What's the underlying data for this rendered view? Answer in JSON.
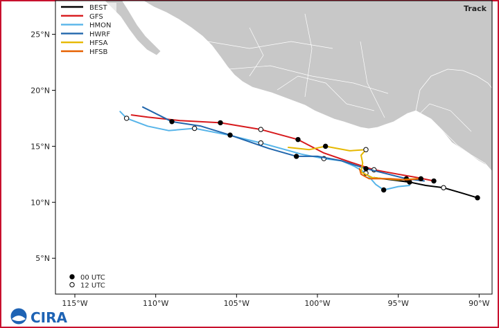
{
  "panel_title": "Track",
  "legend": {
    "models": [
      {
        "name": "BEST",
        "color": "#000000"
      },
      {
        "name": "GFS",
        "color": "#d7191c"
      },
      {
        "name": "HMON",
        "color": "#56b4e9"
      },
      {
        "name": "HWRF",
        "color": "#2166ac"
      },
      {
        "name": "HFSA",
        "color": "#e6b800"
      },
      {
        "name": "HFSB",
        "color": "#e66101"
      }
    ],
    "markers": [
      {
        "label": "00 UTC",
        "style": "filled"
      },
      {
        "label": "12 UTC",
        "style": "open"
      }
    ]
  },
  "logo": {
    "text": "CIRA"
  },
  "axes": {
    "lon_ticks": [
      "115°W",
      "110°W",
      "105°W",
      "100°W",
      "95°W",
      "90°W"
    ],
    "lat_ticks": [
      "25°N",
      "20°N",
      "15°N",
      "10°N",
      "5°N"
    ],
    "lon_values": [
      -115,
      -110,
      -105,
      -100,
      -95,
      -90
    ],
    "lat_values": [
      25,
      20,
      15,
      10,
      5
    ],
    "lon_range": [
      -116.2,
      -89.2
    ],
    "lat_range": [
      1.8,
      28.0
    ]
  },
  "colors": {
    "land": "#c8c8c8",
    "coast": "#ffffff",
    "frame": "#c8102e"
  },
  "tracks": [
    {
      "model": "BEST",
      "color": "#000000",
      "points": [
        [
          -90.1,
          10.4
        ],
        [
          -91.0,
          10.8
        ],
        [
          -92.2,
          11.3
        ],
        [
          -93.3,
          11.5
        ],
        [
          -94.3,
          11.8
        ],
        [
          -95.4,
          12.0
        ],
        [
          -96.5,
          12.2
        ]
      ],
      "markers": [
        [
          -90.1,
          10.4,
          "filled"
        ],
        [
          -92.2,
          11.3,
          "open"
        ],
        [
          -94.3,
          11.8,
          "filled"
        ]
      ]
    },
    {
      "model": "GFS",
      "color": "#d7191c",
      "points": [
        [
          -92.8,
          11.9
        ],
        [
          -93.8,
          12.2
        ],
        [
          -95.0,
          12.5
        ],
        [
          -96.5,
          12.9
        ],
        [
          -98.0,
          13.6
        ],
        [
          -99.6,
          14.4
        ],
        [
          -101.2,
          15.6
        ],
        [
          -103.5,
          16.5
        ],
        [
          -106.0,
          17.1
        ],
        [
          -108.5,
          17.3
        ],
        [
          -110.5,
          17.6
        ],
        [
          -111.5,
          17.8
        ]
      ],
      "markers": [
        [
          -92.8,
          11.9,
          "filled"
        ],
        [
          -96.5,
          12.9,
          "open"
        ],
        [
          -101.2,
          15.6,
          "filled"
        ],
        [
          -103.5,
          16.5,
          "open"
        ],
        [
          -106.0,
          17.1,
          "filled"
        ]
      ]
    },
    {
      "model": "HMON",
      "color": "#56b4e9",
      "points": [
        [
          -94.3,
          11.5
        ],
        [
          -95.0,
          11.4
        ],
        [
          -95.9,
          11.1
        ],
        [
          -96.4,
          11.6
        ],
        [
          -97.0,
          12.6
        ],
        [
          -97.7,
          13.2
        ],
        [
          -98.5,
          13.7
        ],
        [
          -99.6,
          13.9
        ],
        [
          -101.0,
          14.3
        ],
        [
          -103.5,
          15.3
        ],
        [
          -105.5,
          16.0
        ],
        [
          -107.6,
          16.6
        ],
        [
          -109.2,
          16.4
        ],
        [
          -110.5,
          16.8
        ],
        [
          -111.8,
          17.5
        ],
        [
          -112.2,
          18.1
        ]
      ],
      "markers": [
        [
          -95.9,
          11.1,
          "filled"
        ],
        [
          -97.0,
          12.6,
          "open"
        ],
        [
          -99.6,
          13.9,
          "open"
        ],
        [
          -103.5,
          15.3,
          "open"
        ],
        [
          -107.6,
          16.6,
          "open"
        ],
        [
          -111.8,
          17.5,
          "open"
        ]
      ]
    },
    {
      "model": "HWRF",
      "color": "#2166ac",
      "points": [
        [
          -93.4,
          11.9
        ],
        [
          -94.5,
          12.1
        ],
        [
          -95.6,
          12.5
        ],
        [
          -97.0,
          13.0
        ],
        [
          -98.5,
          13.7
        ],
        [
          -100.0,
          14.1
        ],
        [
          -101.3,
          14.1
        ],
        [
          -103.0,
          14.8
        ],
        [
          -105.4,
          16.0
        ],
        [
          -107.2,
          16.8
        ],
        [
          -109.0,
          17.2
        ],
        [
          -110.8,
          18.5
        ]
      ],
      "markers": [
        [
          -94.5,
          12.1,
          "filled"
        ],
        [
          -97.0,
          13.0,
          "filled"
        ],
        [
          -101.3,
          14.1,
          "filled"
        ],
        [
          -105.4,
          16.0,
          "filled"
        ],
        [
          -109.0,
          17.2,
          "filled"
        ]
      ]
    },
    {
      "model": "HFSA",
      "color": "#e6b800",
      "points": [
        [
          -93.8,
          12.1
        ],
        [
          -95.0,
          12.0
        ],
        [
          -96.6,
          12.2
        ],
        [
          -97.3,
          12.7
        ],
        [
          -97.2,
          13.5
        ],
        [
          -97.3,
          14.2
        ],
        [
          -97.0,
          14.7
        ],
        [
          -98.0,
          14.6
        ],
        [
          -99.5,
          15.0
        ],
        [
          -100.5,
          14.7
        ],
        [
          -101.8,
          14.9
        ]
      ],
      "markers": [
        [
          -97.0,
          14.7,
          "open"
        ],
        [
          -99.5,
          15.0,
          "filled"
        ]
      ]
    },
    {
      "model": "HFSB",
      "color": "#e66101",
      "points": [
        [
          -93.6,
          12.1
        ],
        [
          -94.5,
          12.0
        ],
        [
          -95.5,
          12.1
        ],
        [
          -96.8,
          12.1
        ],
        [
          -97.3,
          12.5
        ],
        [
          -97.4,
          13.0
        ]
      ],
      "markers": [
        [
          -93.6,
          12.1,
          "filled"
        ]
      ]
    }
  ]
}
